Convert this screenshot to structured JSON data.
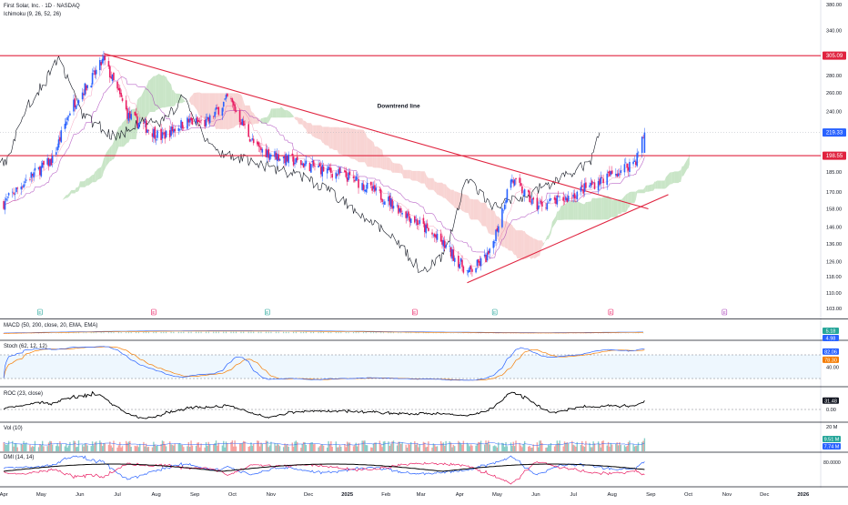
{
  "header": {
    "symbol_line": "First Solar, Inc. · 1D · NASDAQ",
    "indicator_line": "Ichimoku (9, 26, 52, 26)"
  },
  "annotations": {
    "downtrend_label": "Downtrend line"
  },
  "panes": {
    "macd_label": "MACD (50, 200, close, 20, EMA, EMA)",
    "stoch_label": "Stoch (62, 12, 12)",
    "roc_label": "ROC (23, close)",
    "vol_label": "Vol (10)",
    "dmi_label": "DMI (14, 14)"
  },
  "colors": {
    "up": "#2962ff",
    "down": "#e91e63",
    "resistance": "#e0233f",
    "trendline": "#e0233f",
    "cloud_bull": "#b7dcb4",
    "cloud_bear": "#f6c6c4",
    "stoch_k": "#2962ff",
    "stoch_d": "#f57c00"
  },
  "chart_data": [
    {
      "type": "candlestick",
      "title": "First Solar, Inc. · 1D · NASDAQ",
      "x_tick_labels": [
        "Apr",
        "May",
        "Jun",
        "Jul",
        "Aug",
        "Sep",
        "Oct",
        "Nov",
        "Dec",
        "2025",
        "Feb",
        "Mar",
        "Apr",
        "May",
        "Jun",
        "Jul",
        "Aug",
        "Sep",
        "Oct",
        "Nov",
        "Dec",
        "2026"
      ],
      "y_tick_labels": [
        "380.00",
        "340.00",
        "305.09",
        "280.00",
        "260.00",
        "240.00",
        "219.33",
        "198.55",
        "185.00",
        "170.00",
        "158.00",
        "146.00",
        "136.00",
        "126.00",
        "118.00",
        "110.00",
        "103.00"
      ],
      "scale": "log",
      "ylim": [
        103,
        380
      ],
      "last_price": 219.33,
      "horizontal_levels": [
        {
          "price": 305.09,
          "label": "305.09"
        },
        {
          "price": 198.55,
          "label": "198.55"
        }
      ],
      "trendlines": [
        {
          "name": "Downtrend line",
          "from": {
            "date": "2024-06-20",
            "price": 308
          },
          "to": {
            "date": "2025-08-30",
            "price": 158
          }
        },
        {
          "name": "Support line",
          "from": {
            "date": "2025-04-07",
            "price": 115
          },
          "to": {
            "date": "2025-09-15",
            "price": 168
          }
        }
      ],
      "approx_close_path": [
        {
          "date": "2024-04-01",
          "close": 162
        },
        {
          "date": "2024-04-20",
          "close": 180
        },
        {
          "date": "2024-05-10",
          "close": 195
        },
        {
          "date": "2024-05-25",
          "close": 245
        },
        {
          "date": "2024-06-10",
          "close": 275
        },
        {
          "date": "2024-06-20",
          "close": 300
        },
        {
          "date": "2024-07-10",
          "close": 235
        },
        {
          "date": "2024-08-05",
          "close": 215
        },
        {
          "date": "2024-08-25",
          "close": 230
        },
        {
          "date": "2024-09-10",
          "close": 228
        },
        {
          "date": "2024-09-28",
          "close": 255
        },
        {
          "date": "2024-10-20",
          "close": 205
        },
        {
          "date": "2024-11-15",
          "close": 195
        },
        {
          "date": "2024-12-10",
          "close": 188
        },
        {
          "date": "2025-01-05",
          "close": 180
        },
        {
          "date": "2025-02-01",
          "close": 165
        },
        {
          "date": "2025-02-25",
          "close": 150
        },
        {
          "date": "2025-03-20",
          "close": 135
        },
        {
          "date": "2025-04-08",
          "close": 120
        },
        {
          "date": "2025-04-25",
          "close": 130
        },
        {
          "date": "2025-05-12",
          "close": 180
        },
        {
          "date": "2025-06-01",
          "close": 160
        },
        {
          "date": "2025-06-25",
          "close": 165
        },
        {
          "date": "2025-07-15",
          "close": 175
        },
        {
          "date": "2025-08-05",
          "close": 185
        },
        {
          "date": "2025-08-20",
          "close": 195
        },
        {
          "date": "2025-08-27",
          "close": 219.33
        }
      ]
    },
    {
      "type": "line",
      "title": "MACD (50, 200, close, 20, EMA, EMA)",
      "value_labels": [
        "5.18",
        "4.98"
      ]
    },
    {
      "type": "line",
      "title": "Stoch (62, 12, 12)",
      "series": [
        {
          "name": "%K",
          "last": 82.06
        },
        {
          "name": "%D",
          "last": 78.3
        }
      ],
      "y_tick_labels": [
        "40.00"
      ]
    },
    {
      "type": "line",
      "title": "ROC (23, close)",
      "last": 31.48,
      "y_tick_labels": [
        "0.00"
      ]
    },
    {
      "type": "bar",
      "title": "Vol (10)",
      "value_labels": [
        "9.51 M",
        "7.74 M"
      ],
      "y_tick_labels": [
        "20 M"
      ]
    },
    {
      "type": "line",
      "title": "DMI (14, 14)",
      "y_tick_labels": [
        "80.0000"
      ]
    }
  ]
}
